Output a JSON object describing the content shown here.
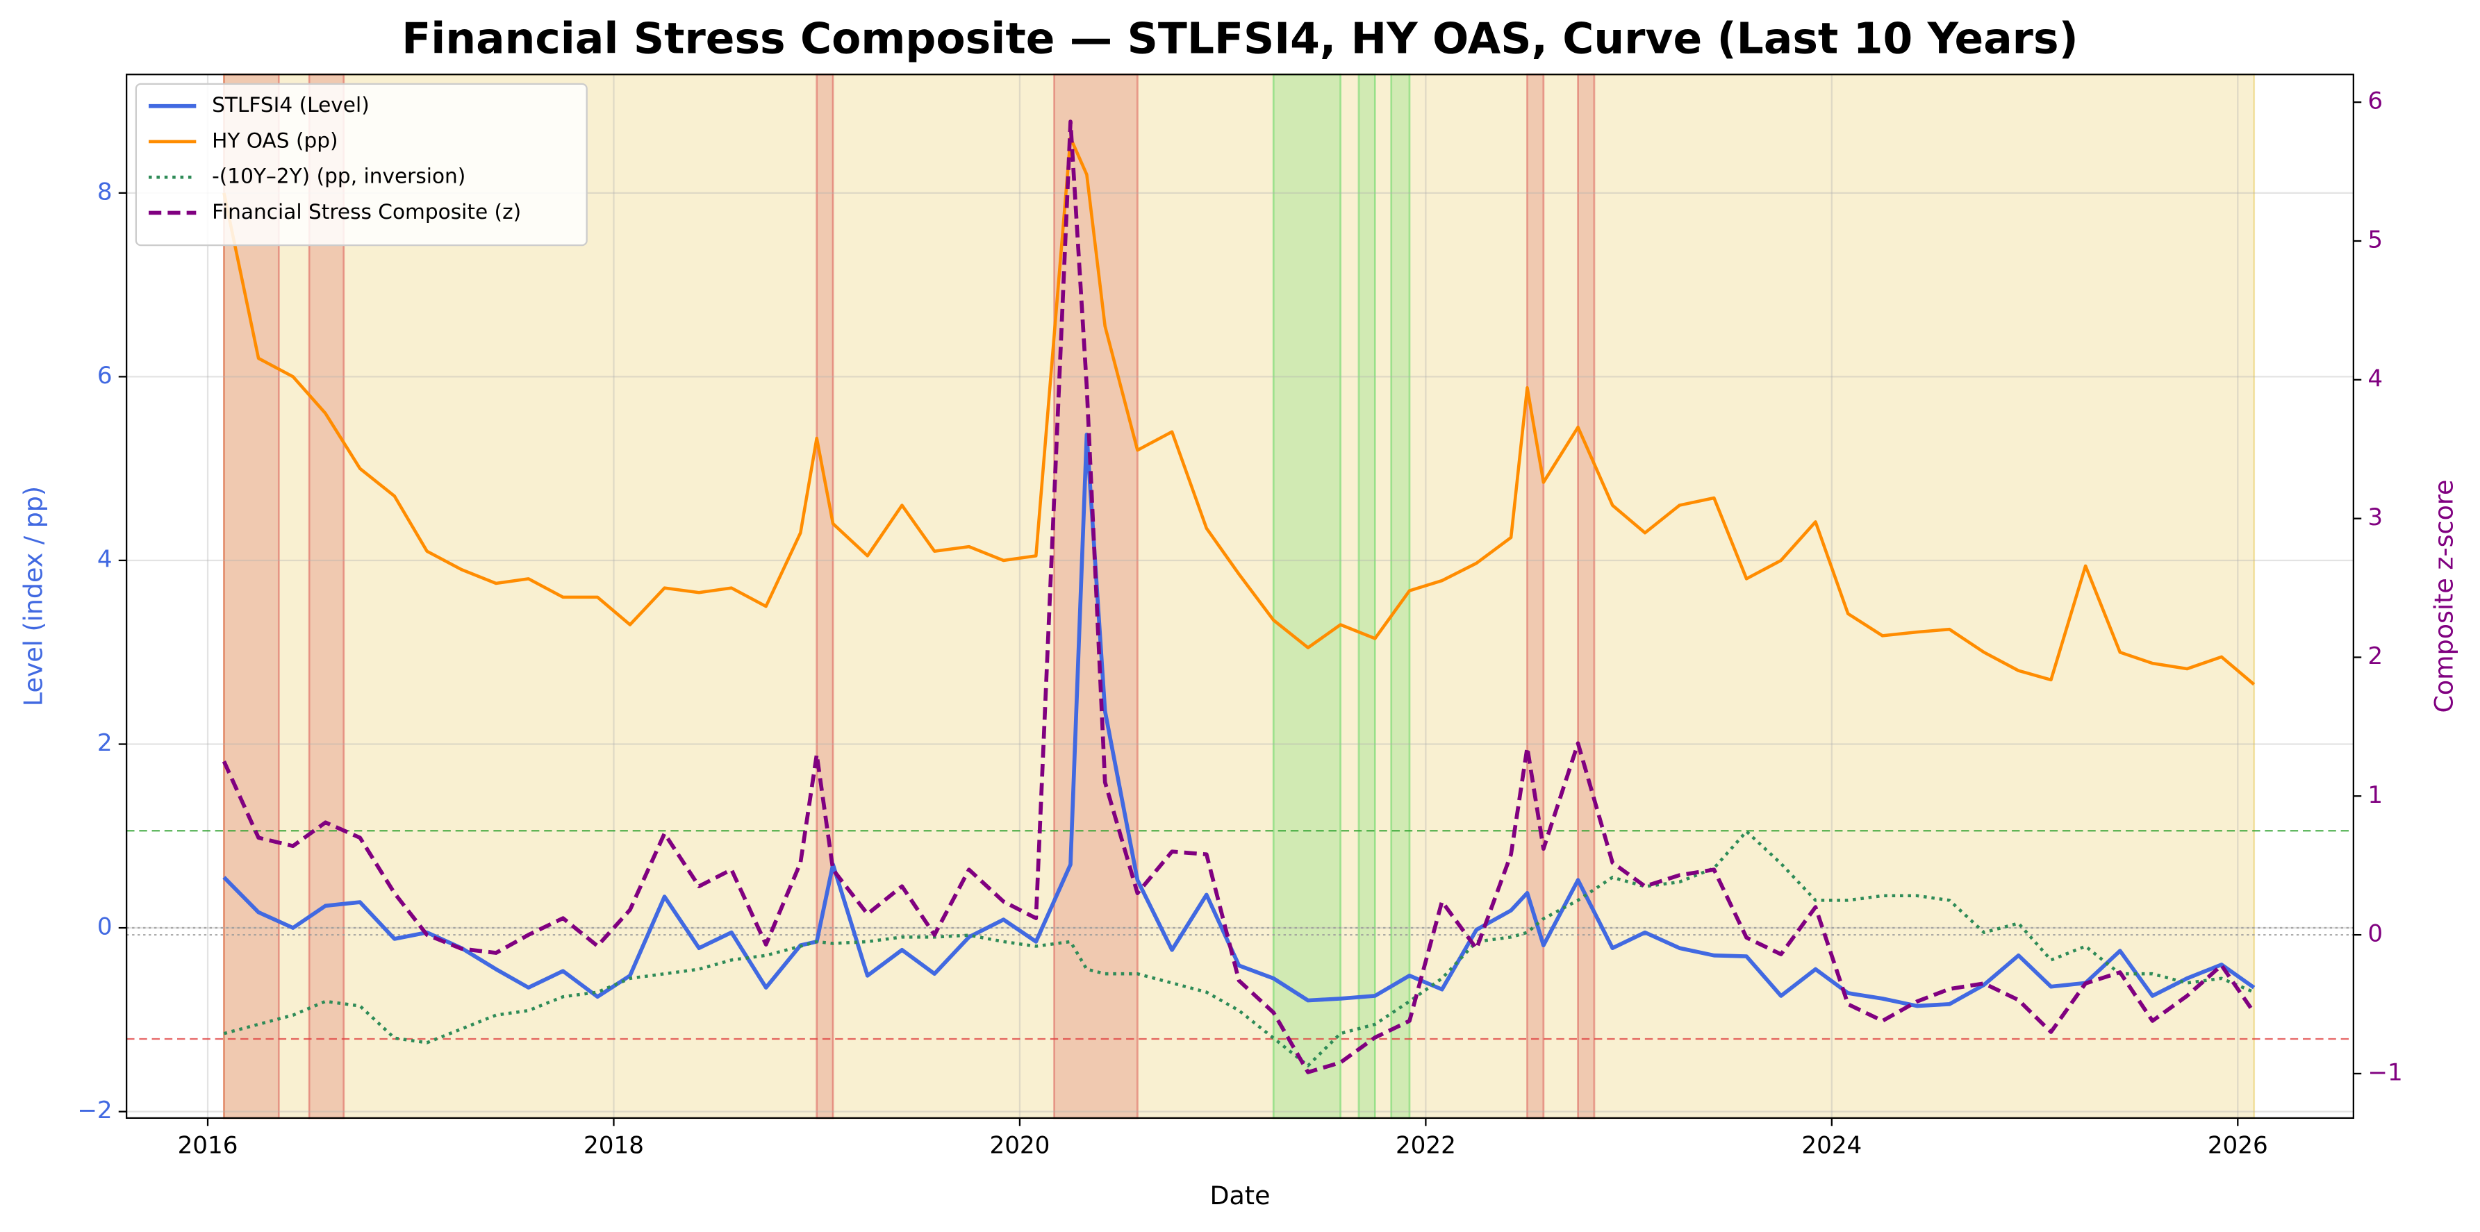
{
  "chart_data": {
    "type": "line",
    "title": "Financial Stress Composite — STLFSI4, HY OAS, Curve (Last 10 Years)",
    "xlabel": "Date",
    "ylabel": "Level (index / pp)",
    "y2label": "Composite z-score",
    "ylabel_color": "#4169e1",
    "y2label_color": "#800080",
    "xlim": [
      2015.6,
      2026.57
    ],
    "ylim": [
      -2.07,
      9.29
    ],
    "y2lim": [
      -1.32,
      6.2
    ],
    "xticks": [
      2016,
      2018,
      2020,
      2022,
      2024,
      2026
    ],
    "yticks": [
      {
        "value": -2,
        "label": "−2"
      },
      0,
      2,
      4,
      6,
      8
    ],
    "y2ticks": [
      {
        "value": -1,
        "label": "−1"
      },
      0,
      1,
      2,
      3,
      4,
      5,
      6
    ],
    "grid": true,
    "legend": "upper left",
    "x": [
      2016.08,
      2016.25,
      2016.42,
      2016.58,
      2016.75,
      2016.92,
      2017.08,
      2017.25,
      2017.42,
      2017.58,
      2017.75,
      2017.92,
      2018.08,
      2018.25,
      2018.42,
      2018.58,
      2018.75,
      2018.92,
      2019.0,
      2019.08,
      2019.25,
      2019.42,
      2019.58,
      2019.75,
      2019.92,
      2020.08,
      2020.25,
      2020.33,
      2020.42,
      2020.58,
      2020.75,
      2020.92,
      2021.08,
      2021.25,
      2021.42,
      2021.58,
      2021.75,
      2021.92,
      2022.08,
      2022.25,
      2022.42,
      2022.5,
      2022.58,
      2022.75,
      2022.92,
      2023.08,
      2023.25,
      2023.42,
      2023.58,
      2023.75,
      2023.92,
      2024.08,
      2024.25,
      2024.42,
      2024.58,
      2024.75,
      2024.92,
      2025.08,
      2025.25,
      2025.42,
      2025.58,
      2025.75,
      2025.92,
      2026.08
    ],
    "series": [
      {
        "name": "STLFSI4 (Level)",
        "color": "#4169e1",
        "style": "solid",
        "width": 2.5,
        "axis": "y",
        "values": [
          0.55,
          0.17,
          0.0,
          0.24,
          0.28,
          -0.12,
          -0.05,
          -0.22,
          -0.45,
          -0.65,
          -0.47,
          -0.75,
          -0.52,
          0.34,
          -0.22,
          -0.05,
          -0.65,
          -0.19,
          -0.15,
          0.69,
          -0.52,
          -0.24,
          -0.5,
          -0.1,
          0.09,
          -0.15,
          0.69,
          5.37,
          2.36,
          0.52,
          -0.24,
          0.36,
          -0.41,
          -0.55,
          -0.79,
          -0.77,
          -0.74,
          -0.52,
          -0.67,
          -0.02,
          0.19,
          0.38,
          -0.19,
          0.52,
          -0.22,
          -0.05,
          -0.22,
          -0.3,
          -0.31,
          -0.74,
          -0.45,
          -0.71,
          -0.77,
          -0.85,
          -0.83,
          -0.62,
          -0.3,
          -0.64,
          -0.6,
          -0.25,
          -0.74,
          -0.55,
          -0.4,
          -0.65
        ]
      },
      {
        "name": "HY OAS (pp)",
        "color": "#ff8c00",
        "style": "solid",
        "width": 2,
        "axis": "y",
        "values": [
          8.0,
          6.2,
          6.0,
          5.6,
          5.0,
          4.7,
          4.1,
          3.9,
          3.75,
          3.8,
          3.6,
          3.6,
          3.3,
          3.7,
          3.65,
          3.7,
          3.5,
          4.3,
          5.33,
          4.4,
          4.05,
          4.6,
          4.1,
          4.15,
          4.0,
          4.05,
          8.6,
          8.2,
          6.55,
          5.2,
          5.4,
          4.35,
          3.85,
          3.35,
          3.05,
          3.3,
          3.15,
          3.67,
          3.78,
          3.97,
          4.25,
          5.88,
          4.85,
          5.45,
          4.6,
          4.3,
          4.6,
          4.68,
          3.8,
          4.0,
          4.42,
          3.42,
          3.18,
          3.22,
          3.25,
          3.0,
          2.8,
          2.7,
          3.94,
          3.0,
          2.88,
          2.82,
          2.95,
          2.65
        ]
      },
      {
        "name": "-(10Y–2Y) (pp, inversion)",
        "color": "#2e8b57",
        "style": "dotted",
        "width": 2,
        "axis": "y",
        "values": [
          -1.15,
          -1.05,
          -0.95,
          -0.8,
          -0.85,
          -1.2,
          -1.25,
          -1.1,
          -0.95,
          -0.9,
          -0.75,
          -0.7,
          -0.55,
          -0.5,
          -0.45,
          -0.35,
          -0.3,
          -0.2,
          -0.15,
          -0.17,
          -0.15,
          -0.1,
          -0.1,
          -0.08,
          -0.15,
          -0.2,
          -0.15,
          -0.45,
          -0.5,
          -0.5,
          -0.6,
          -0.7,
          -0.9,
          -1.2,
          -1.5,
          -1.15,
          -1.05,
          -0.8,
          -0.55,
          -0.15,
          -0.1,
          -0.05,
          0.1,
          0.3,
          0.55,
          0.45,
          0.5,
          0.65,
          1.05,
          0.7,
          0.3,
          0.3,
          0.35,
          0.35,
          0.3,
          -0.05,
          0.05,
          -0.35,
          -0.2,
          -0.5,
          -0.5,
          -0.6,
          -0.55,
          -0.7
        ]
      },
      {
        "name": "Financial Stress Composite (z)",
        "color": "#800080",
        "style": "dashed",
        "width": 2.5,
        "axis": "y2",
        "values": [
          1.25,
          0.7,
          0.64,
          0.81,
          0.7,
          0.3,
          0.0,
          -0.1,
          -0.13,
          0.0,
          0.12,
          -0.08,
          0.18,
          0.73,
          0.35,
          0.47,
          -0.07,
          0.52,
          1.3,
          0.47,
          0.15,
          0.35,
          0.0,
          0.47,
          0.24,
          0.12,
          5.86,
          3.95,
          1.1,
          0.3,
          0.6,
          0.58,
          -0.33,
          -0.56,
          -0.99,
          -0.92,
          -0.74,
          -0.62,
          0.24,
          -0.1,
          0.58,
          1.35,
          0.62,
          1.38,
          0.52,
          0.35,
          0.43,
          0.47,
          -0.02,
          -0.14,
          0.2,
          -0.5,
          -0.62,
          -0.48,
          -0.39,
          -0.35,
          -0.47,
          -0.7,
          -0.35,
          -0.27,
          -0.62,
          -0.44,
          -0.22,
          -0.56
        ]
      }
    ],
    "regions": [
      {
        "start": 2016.08,
        "end": 2026.08,
        "color": "#e8c95a"
      },
      {
        "start": 2016.08,
        "end": 2016.35,
        "color": "#d9534f"
      },
      {
        "start": 2016.5,
        "end": 2016.67,
        "color": "#d9534f"
      },
      {
        "start": 2019.0,
        "end": 2019.08,
        "color": "#d9534f"
      },
      {
        "start": 2020.17,
        "end": 2020.58,
        "color": "#d9534f"
      },
      {
        "start": 2021.25,
        "end": 2021.58,
        "color": "#5cd65c"
      },
      {
        "start": 2021.67,
        "end": 2021.75,
        "color": "#5cd65c"
      },
      {
        "start": 2021.83,
        "end": 2021.92,
        "color": "#5cd65c"
      },
      {
        "start": 2022.5,
        "end": 2022.58,
        "color": "#d9534f"
      },
      {
        "start": 2022.75,
        "end": 2022.83,
        "color": "#d9534f"
      }
    ],
    "hlines": [
      {
        "value": 0.75,
        "axis": "y2",
        "color": "#2ca02c",
        "style": "dashed"
      },
      {
        "value": -0.75,
        "axis": "y2",
        "color": "#e04040",
        "style": "dashed"
      },
      {
        "value": 0,
        "axis": "y2",
        "color": "#999999",
        "style": "dotted"
      },
      {
        "value": 0,
        "axis": "y",
        "color": "#999999",
        "style": "dotted"
      }
    ]
  }
}
